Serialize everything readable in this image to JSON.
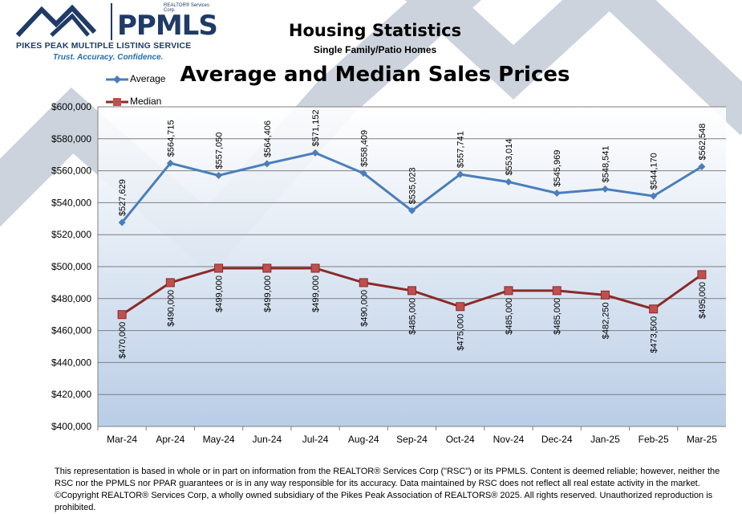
{
  "header": {
    "logo_company": "REALTOR® Services Corp.",
    "logo_brand": "PPMLS",
    "logo_org": "PIKES PEAK MULTIPLE LISTING SERVICE",
    "logo_tagline": "Trust. Accuracy. Confidence."
  },
  "chart_data": {
    "type": "line",
    "title": "Housing Statistics",
    "subtitle": "Single Family/Patio Homes",
    "heading": "Average and Median Sales Prices",
    "categories": [
      "Mar-24",
      "Apr-24",
      "May-24",
      "Jun-24",
      "Jul-24",
      "Aug-24",
      "Sep-24",
      "Oct-24",
      "Nov-24",
      "Dec-24",
      "Jan-25",
      "Feb-25",
      "Mar-25"
    ],
    "series": [
      {
        "name": "Average",
        "color": "#4a7ebb",
        "marker": "diamond",
        "values": [
          527629,
          564715,
          557050,
          564406,
          571152,
          558409,
          535023,
          557741,
          553014,
          545969,
          548541,
          544170,
          562548
        ],
        "labels": [
          "$527,629",
          "$564,715",
          "$557,050",
          "$564,406",
          "$571,152",
          "$558,409",
          "$535,023",
          "$557,741",
          "$553,014",
          "$545,969",
          "$548,541",
          "$544,170",
          "$562,548"
        ]
      },
      {
        "name": "Median",
        "color": "#8b2a2a",
        "marker": "square",
        "values": [
          470000,
          490000,
          499000,
          499000,
          499000,
          490000,
          485000,
          475000,
          485000,
          485000,
          482250,
          473500,
          495000
        ],
        "labels": [
          "$470,000",
          "$490,000",
          "$499,000",
          "$499,000",
          "$499,000",
          "$490,000",
          "$485,000",
          "$475,000",
          "$485,000",
          "$485,000",
          "$482,250",
          "$473,500",
          "$495,000"
        ]
      }
    ],
    "ylim": [
      400000,
      600000
    ],
    "yticks": [
      400000,
      420000,
      440000,
      460000,
      480000,
      500000,
      520000,
      540000,
      560000,
      580000,
      600000
    ],
    "ytick_labels": [
      "$400,000",
      "$420,000",
      "$440,000",
      "$460,000",
      "$480,000",
      "$500,000",
      "$520,000",
      "$540,000",
      "$560,000",
      "$580,000",
      "$600,000"
    ],
    "grid": true,
    "legend_position": "top-left"
  },
  "footer": {
    "disclaimer": "This representation is based in whole or in part on information from the REALTOR® Services Corp (\"RSC\") or its PPMLS. Content is deemed reliable; however, neither the RSC nor the PPMLS nor PPAR guarantees or is in any way responsible for its accuracy. Data maintained by RSC does not reflect all real estate activity in the market. ©Copyright REALTOR® Services Corp, a wholly owned subsidiary of the Pikes Peak Association of REALTORS® 2025. All rights reserved. Unauthorized reproduction is prohibited."
  }
}
